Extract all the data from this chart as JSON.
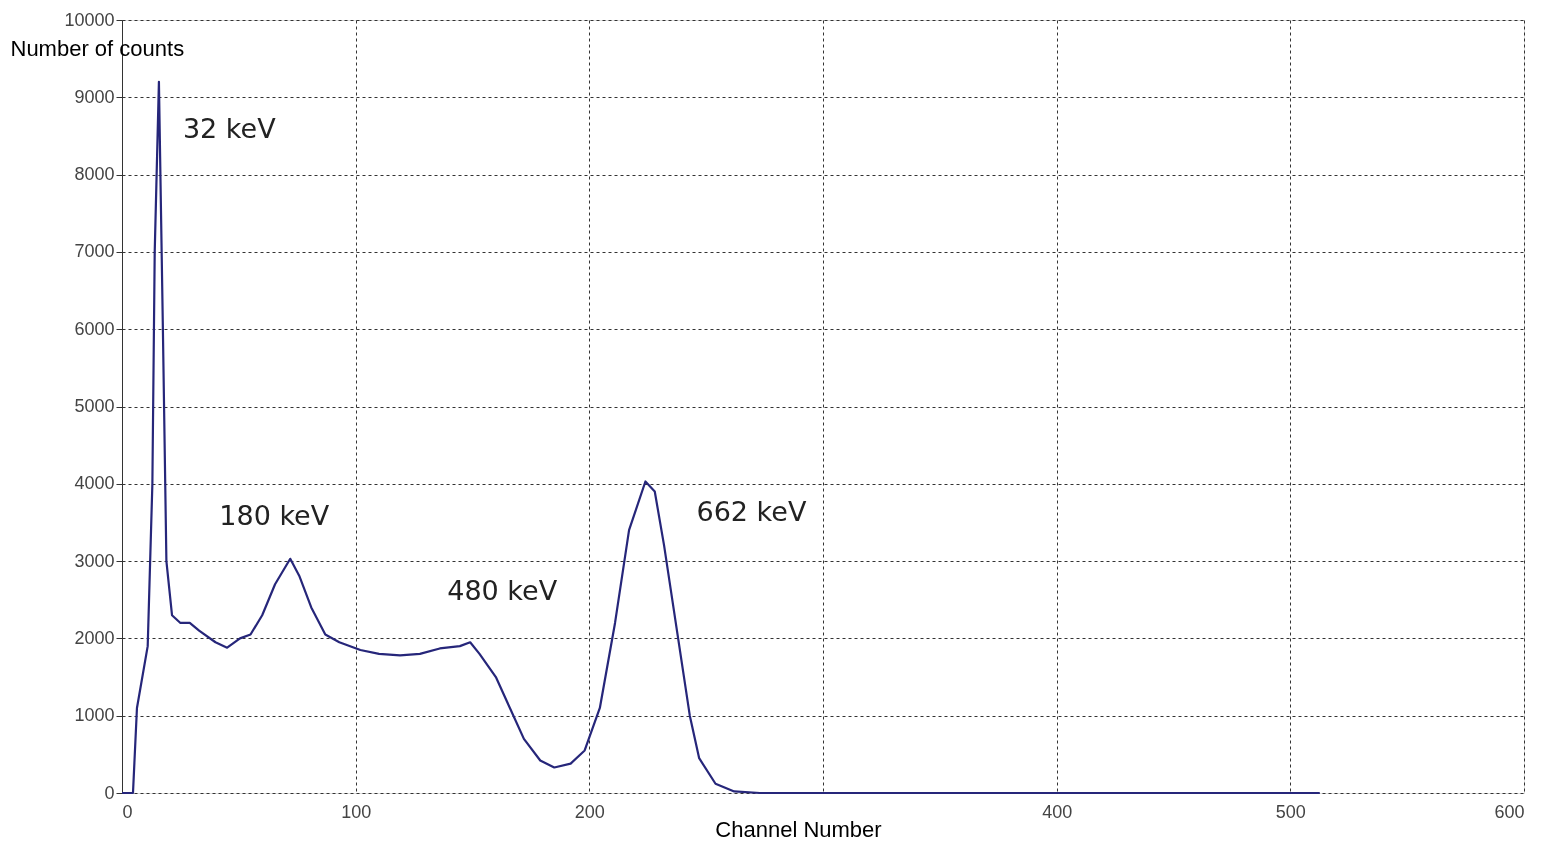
{
  "chart_data": {
    "type": "line",
    "xlabel": "Channel Number",
    "ylabel": "Number of counts",
    "x": [
      0,
      4.7,
      6.4,
      11,
      13,
      14,
      15.8,
      17.5,
      19,
      21.4,
      25,
      29,
      33,
      40,
      45,
      50.5,
      55,
      60,
      65.5,
      72,
      76,
      81,
      87,
      93,
      102,
      110,
      119,
      127.5,
      136,
      144.6,
      149,
      153,
      160,
      166,
      172,
      179,
      185,
      192,
      198,
      204.5,
      211,
      217,
      224,
      228,
      232,
      238,
      243,
      247,
      254,
      262,
      273,
      512.6
    ],
    "series": [
      {
        "color": "#26267a",
        "values": [
          0,
          0,
          1100,
          1900,
          4000,
          7000,
          9200,
          6000,
          3000,
          2300,
          2200,
          2200,
          2100,
          1950,
          1880,
          2000,
          2050,
          2300,
          2700,
          3030,
          2800,
          2400,
          2050,
          1950,
          1850,
          1800,
          1780,
          1800,
          1870,
          1900,
          1950,
          1800,
          1500,
          1100,
          700,
          420,
          330,
          380,
          550,
          1100,
          2200,
          3400,
          4030,
          3900,
          3200,
          2000,
          1000,
          450,
          120,
          20,
          0,
          0
        ]
      }
    ],
    "xlim": [
      0,
      600
    ],
    "xticks": [
      0,
      100,
      200,
      {
        "value": 300,
        "label": null
      },
      400,
      500,
      600
    ],
    "ylim": [
      0,
      10000
    ],
    "yticks": [
      0,
      1000,
      2000,
      3000,
      4000,
      5000,
      6000,
      7000,
      8000,
      9000,
      10000
    ],
    "grid": true,
    "marker": "none",
    "line_style": "solid",
    "annotations": [
      {
        "text": "32 keV",
        "x": 15.8,
        "y": 9200
      },
      {
        "text": "180 keV",
        "x": 72,
        "y": 3030
      },
      {
        "text": "480 keV",
        "x": 149,
        "y": 1950
      },
      {
        "text": "662 keV",
        "x": 224,
        "y": 4030
      }
    ]
  }
}
